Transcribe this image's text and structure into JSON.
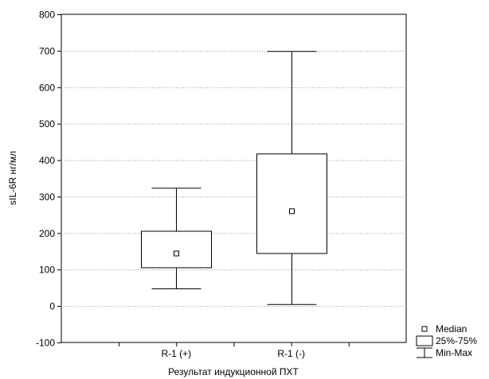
{
  "chart_data": {
    "type": "boxplot",
    "xlabel": "Результат индукционной ПХТ",
    "ylabel": "sIL-6R нг/мл",
    "ylim": [
      -100,
      800
    ],
    "yticks": [
      -100,
      0,
      100,
      200,
      300,
      400,
      500,
      600,
      700,
      800
    ],
    "grid": "horizontal dotted",
    "categories": [
      "R-1 (+)",
      "R-1 (-)"
    ],
    "boxes": [
      {
        "category": "R-1 (+)",
        "min": 47,
        "q1": 105,
        "median": 144,
        "q3": 205,
        "max": 323
      },
      {
        "category": "R-1 (-)",
        "min": 4,
        "q1": 144,
        "median": 260,
        "q3": 417,
        "max": 698
      }
    ],
    "legend": {
      "placement": "bottom-right",
      "items": [
        {
          "symbol": "median-square",
          "label": "Median"
        },
        {
          "symbol": "box",
          "label": "25%-75%"
        },
        {
          "symbol": "whisker",
          "label": "Min-Max"
        }
      ]
    },
    "colors": {
      "line": "#000000",
      "grid": "#9a9a9a",
      "background": "#ffffff"
    }
  }
}
